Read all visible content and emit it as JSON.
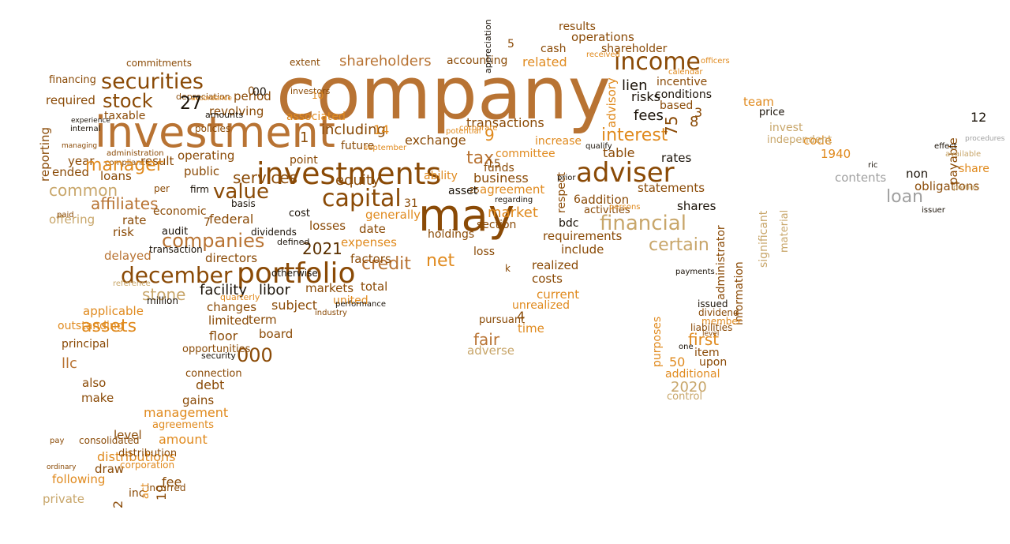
{
  "palette": {
    "brown": "#8a4a06",
    "copper": "#b87333",
    "orange": "#e08a1e",
    "dark": "#5a3000",
    "tan": "#c8a66a",
    "grey": "#a0a0a0",
    "black": "#1a1208"
  },
  "words": [
    {
      "text": "company",
      "color": "copper"
    },
    {
      "text": "investment",
      "color": "copper"
    },
    {
      "text": "may",
      "color": "brown"
    },
    {
      "text": "investments",
      "color": "brown"
    },
    {
      "text": "portfolio",
      "color": "brown"
    },
    {
      "text": "adviser",
      "color": "brown"
    },
    {
      "text": "income",
      "color": "brown"
    },
    {
      "text": "capital",
      "color": "brown"
    },
    {
      "text": "securities",
      "color": "brown"
    },
    {
      "text": "financial",
      "color": "tan"
    },
    {
      "text": "companies",
      "color": "copper"
    },
    {
      "text": "december",
      "color": "brown"
    },
    {
      "text": "value",
      "color": "brown"
    },
    {
      "text": "net",
      "color": "orange"
    },
    {
      "text": "000",
      "color": "brown"
    },
    {
      "text": "stock",
      "color": "brown"
    },
    {
      "text": "interest",
      "color": "orange"
    },
    {
      "text": "assets",
      "color": "orange"
    },
    {
      "text": "credit",
      "color": "copper"
    },
    {
      "text": "services",
      "color": "brown"
    },
    {
      "text": "loan",
      "color": "grey"
    },
    {
      "text": "certain",
      "color": "tan"
    },
    {
      "text": "2021",
      "color": "dark"
    },
    {
      "text": "shareholders",
      "color": "copper"
    },
    {
      "text": "tax",
      "color": "copper"
    },
    {
      "text": "market",
      "color": "orange"
    },
    {
      "text": "stone",
      "color": "tan"
    },
    {
      "text": "affiliates",
      "color": "copper"
    },
    {
      "text": "2020",
      "color": "tan"
    },
    {
      "text": "fair",
      "color": "copper"
    },
    {
      "text": "common",
      "color": "tan"
    },
    {
      "text": "first",
      "color": "orange"
    },
    {
      "text": "facility",
      "color": "black"
    },
    {
      "text": "libor",
      "color": "black"
    },
    {
      "text": "management",
      "color": "orange"
    },
    {
      "text": "distributions",
      "color": "orange"
    },
    {
      "text": "including",
      "color": "brown"
    },
    {
      "text": "related",
      "color": "orange"
    },
    {
      "text": "operations",
      "color": "brown"
    },
    {
      "text": "lien",
      "color": "black"
    },
    {
      "text": "fees",
      "color": "black"
    },
    {
      "text": "risks",
      "color": "black"
    },
    {
      "text": "equity",
      "color": "brown"
    },
    {
      "text": "exchange",
      "color": "brown"
    },
    {
      "text": "business",
      "color": "brown"
    },
    {
      "text": "transactions",
      "color": "brown"
    },
    {
      "text": "agreement",
      "color": "orange"
    },
    {
      "text": "statements",
      "color": "brown"
    },
    {
      "text": "shares",
      "color": "black"
    },
    {
      "text": "rates",
      "color": "black"
    },
    {
      "text": "obligations",
      "color": "brown"
    },
    {
      "text": "contents",
      "color": "grey"
    },
    {
      "text": "share",
      "color": "orange"
    },
    {
      "text": "1940",
      "color": "orange"
    },
    {
      "text": "code",
      "color": "orange"
    },
    {
      "text": "invest",
      "color": "tan"
    },
    {
      "text": "independent",
      "color": "tan"
    },
    {
      "text": "team",
      "color": "orange"
    },
    {
      "text": "price",
      "color": "black"
    },
    {
      "text": "payable",
      "color": "brown"
    },
    {
      "text": "non",
      "color": "black"
    },
    {
      "text": "table",
      "color": "brown"
    },
    {
      "text": "addition",
      "color": "brown"
    },
    {
      "text": "requirements",
      "color": "brown"
    },
    {
      "text": "include",
      "color": "brown"
    },
    {
      "text": "realized",
      "color": "brown"
    },
    {
      "text": "costs",
      "color": "brown"
    },
    {
      "text": "current",
      "color": "orange"
    },
    {
      "text": "unrealized",
      "color": "orange"
    },
    {
      "text": "time",
      "color": "orange"
    },
    {
      "text": "adverse",
      "color": "tan"
    },
    {
      "text": "generally",
      "color": "orange"
    },
    {
      "text": "date",
      "color": "brown"
    },
    {
      "text": "expenses",
      "color": "orange"
    },
    {
      "text": "factors",
      "color": "brown"
    },
    {
      "text": "total",
      "color": "brown"
    },
    {
      "text": "markets",
      "color": "brown"
    },
    {
      "text": "united",
      "color": "orange"
    },
    {
      "text": "losses",
      "color": "brown"
    },
    {
      "text": "subject",
      "color": "brown"
    },
    {
      "text": "term",
      "color": "brown"
    },
    {
      "text": "board",
      "color": "brown"
    },
    {
      "text": "changes",
      "color": "brown"
    },
    {
      "text": "limited",
      "color": "brown"
    },
    {
      "text": "floor",
      "color": "brown"
    },
    {
      "text": "federal",
      "color": "brown"
    },
    {
      "text": "directors",
      "color": "brown"
    },
    {
      "text": "revolving",
      "color": "brown"
    },
    {
      "text": "period",
      "color": "brown"
    },
    {
      "text": "public",
      "color": "brown"
    },
    {
      "text": "operating",
      "color": "brown"
    },
    {
      "text": "loans",
      "color": "brown"
    },
    {
      "text": "year",
      "color": "brown"
    },
    {
      "text": "taxable",
      "color": "brown"
    },
    {
      "text": "required",
      "color": "brown"
    },
    {
      "text": "reporting",
      "color": "brown"
    },
    {
      "text": "ended",
      "color": "brown"
    },
    {
      "text": "rate",
      "color": "brown"
    },
    {
      "text": "risk",
      "color": "brown"
    },
    {
      "text": "result",
      "color": "brown"
    },
    {
      "text": "offering",
      "color": "tan"
    },
    {
      "text": "delayed",
      "color": "copper"
    },
    {
      "text": "applicable",
      "color": "orange"
    },
    {
      "text": "principal",
      "color": "brown"
    },
    {
      "text": "llc",
      "color": "copper"
    },
    {
      "text": "also",
      "color": "brown"
    },
    {
      "text": "make",
      "color": "brown"
    },
    {
      "text": "gains",
      "color": "brown"
    },
    {
      "text": "debt",
      "color": "brown"
    },
    {
      "text": "agreements",
      "color": "orange"
    },
    {
      "text": "amount",
      "color": "orange"
    },
    {
      "text": "level",
      "color": "brown"
    },
    {
      "text": "following",
      "color": "orange"
    },
    {
      "text": "private",
      "color": "tan"
    },
    {
      "text": "draw",
      "color": "brown"
    },
    {
      "text": "fee",
      "color": "brown"
    },
    {
      "text": "accounting",
      "color": "brown"
    },
    {
      "text": "cash",
      "color": "brown"
    },
    {
      "text": "results",
      "color": "brown"
    },
    {
      "text": "shareholder",
      "color": "brown"
    },
    {
      "text": "incentive",
      "color": "brown"
    },
    {
      "text": "conditions",
      "color": "black"
    },
    {
      "text": "based",
      "color": "brown"
    },
    {
      "text": "committee",
      "color": "orange"
    },
    {
      "text": "increase",
      "color": "orange"
    },
    {
      "text": "ability",
      "color": "orange"
    },
    {
      "text": "advisory",
      "color": "orange"
    },
    {
      "text": "financing",
      "color": "brown"
    },
    {
      "text": "commitments",
      "color": "brown"
    },
    {
      "text": "extent",
      "color": "brown"
    },
    {
      "text": "associated",
      "color": "orange"
    },
    {
      "text": "future",
      "color": "brown"
    },
    {
      "text": "asset",
      "color": "black"
    },
    {
      "text": "funds",
      "color": "brown"
    },
    {
      "text": "holdings",
      "color": "brown"
    },
    {
      "text": "section",
      "color": "brown"
    },
    {
      "text": "loss",
      "color": "brown"
    },
    {
      "text": "bdc",
      "color": "black"
    },
    {
      "text": "purposes",
      "color": "orange"
    },
    {
      "text": "upon",
      "color": "brown"
    },
    {
      "text": "item",
      "color": "brown"
    },
    {
      "text": "additional",
      "color": "orange"
    },
    {
      "text": "control",
      "color": "tan"
    },
    {
      "text": "administrator",
      "color": "brown"
    },
    {
      "text": "information",
      "color": "brown"
    },
    {
      "text": "significant",
      "color": "tan"
    },
    {
      "text": "material",
      "color": "tan"
    },
    {
      "text": "issued",
      "color": "black"
    },
    {
      "text": "dividend",
      "color": "brown"
    },
    {
      "text": "member",
      "color": "orange"
    },
    {
      "text": "liabilities",
      "color": "brown"
    },
    {
      "text": "respect",
      "color": "brown"
    },
    {
      "text": "activities",
      "color": "brown"
    },
    {
      "text": "pursuant",
      "color": "brown"
    },
    {
      "text": "economic",
      "color": "brown"
    },
    {
      "text": "audit",
      "color": "black"
    },
    {
      "text": "transaction",
      "color": "black"
    },
    {
      "text": "opportunities",
      "color": "brown"
    },
    {
      "text": "connection",
      "color": "brown"
    },
    {
      "text": "security",
      "color": "black"
    },
    {
      "text": "outstanding",
      "color": "orange"
    },
    {
      "text": "consolidated",
      "color": "brown"
    },
    {
      "text": "distribution",
      "color": "brown"
    },
    {
      "text": "corporation",
      "color": "orange"
    },
    {
      "text": "incurred",
      "color": "brown"
    },
    {
      "text": "million",
      "color": "black"
    },
    {
      "text": "reference",
      "color": "tan"
    },
    {
      "text": "dividends",
      "color": "black"
    },
    {
      "text": "otherwise",
      "color": "black"
    },
    {
      "text": "defined",
      "color": "black"
    },
    {
      "text": "basis",
      "color": "black"
    },
    {
      "text": "cost",
      "color": "black"
    },
    {
      "text": "point",
      "color": "brown"
    },
    {
      "text": "per",
      "color": "brown"
    },
    {
      "text": "firm",
      "color": "black"
    },
    {
      "text": "ric",
      "color": "black"
    },
    {
      "text": "available",
      "color": "tan"
    },
    {
      "text": "effect",
      "color": "black"
    },
    {
      "text": "qualify",
      "color": "black"
    },
    {
      "text": "prior",
      "color": "black"
    },
    {
      "text": "regarding",
      "color": "black"
    },
    {
      "text": "performance",
      "color": "black"
    },
    {
      "text": "industry",
      "color": "brown"
    },
    {
      "text": "quarterly",
      "color": "orange"
    },
    {
      "text": "amounts",
      "color": "black"
    },
    {
      "text": "depreciation",
      "color": "brown"
    },
    {
      "text": "investors",
      "color": "brown"
    },
    {
      "text": "policies",
      "color": "brown"
    },
    {
      "text": "compliance",
      "color": "brown"
    },
    {
      "text": "administration",
      "color": "brown"
    },
    {
      "text": "managing",
      "color": "brown"
    },
    {
      "text": "experience",
      "color": "black"
    },
    {
      "text": "internal",
      "color": "black"
    },
    {
      "text": "appreciation",
      "color": "black"
    },
    {
      "text": "accordance",
      "color": "orange"
    },
    {
      "text": "officers",
      "color": "orange"
    },
    {
      "text": "calendar",
      "color": "orange"
    },
    {
      "text": "persons",
      "color": "orange"
    },
    {
      "text": "corporate",
      "color": "orange"
    },
    {
      "text": "potential",
      "color": "orange"
    },
    {
      "text": "september",
      "color": "orange"
    },
    {
      "text": "received",
      "color": "orange"
    },
    {
      "text": "pay",
      "color": "brown"
    },
    {
      "text": "ordinary",
      "color": "brown"
    },
    {
      "text": "paid",
      "color": "brown"
    },
    {
      "text": "portion",
      "color": "tan"
    },
    {
      "text": "issuer",
      "color": "black"
    },
    {
      "text": "procedures",
      "color": "grey"
    },
    {
      "text": "payments",
      "color": "black"
    },
    {
      "text": "level",
      "color": "brown"
    },
    {
      "text": "one",
      "color": "black"
    },
    {
      "text": "manager",
      "color": "orange"
    },
    {
      "text": "1",
      "color": "brown"
    },
    {
      "text": "2",
      "color": "brown"
    },
    {
      "text": "3",
      "color": "brown"
    },
    {
      "text": "4",
      "color": "brown"
    },
    {
      "text": "5",
      "color": "brown"
    },
    {
      "text": "6",
      "color": "brown"
    },
    {
      "text": "7",
      "color": "brown"
    },
    {
      "text": "8",
      "color": "brown"
    },
    {
      "text": "9",
      "color": "orange"
    },
    {
      "text": "0",
      "color": "brown"
    },
    {
      "text": "00",
      "color": "black"
    },
    {
      "text": "10",
      "color": "orange"
    },
    {
      "text": "12",
      "color": "black"
    },
    {
      "text": "14",
      "color": "orange"
    },
    {
      "text": "15",
      "color": "brown"
    },
    {
      "text": "19",
      "color": "brown"
    },
    {
      "text": "25",
      "color": "brown"
    },
    {
      "text": "27",
      "color": "black"
    },
    {
      "text": "31",
      "color": "brown"
    },
    {
      "text": "50",
      "color": "orange"
    },
    {
      "text": "75",
      "color": "brown"
    },
    {
      "text": "act",
      "color": "orange"
    },
    {
      "text": "inc",
      "color": "brown"
    },
    {
      "text": "k",
      "color": "brown"
    }
  ]
}
